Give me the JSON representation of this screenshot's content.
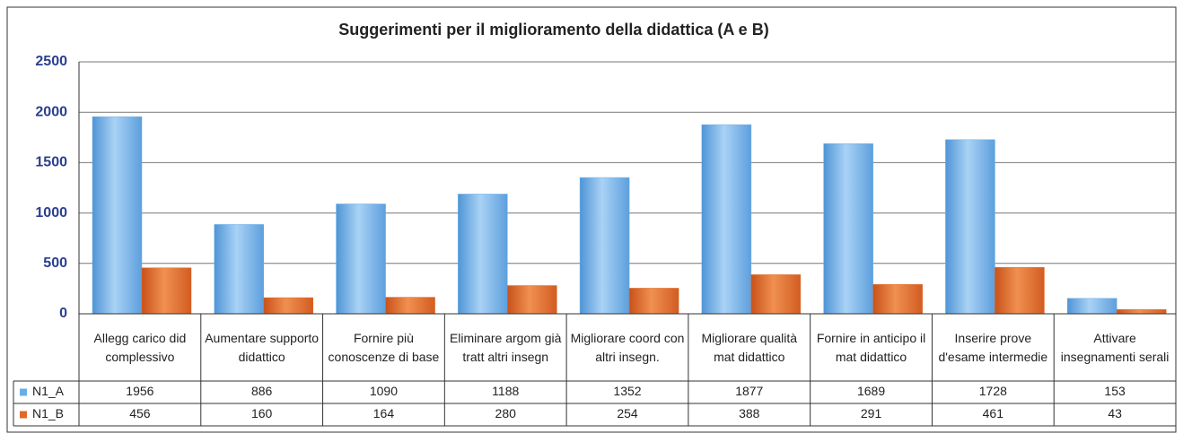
{
  "chart_data": {
    "type": "bar",
    "title": "Suggerimenti per il miglioramento della didattica (A e B)",
    "categories": [
      "Allegg carico did complessivo",
      "Aumentare supporto didattico",
      "Fornire più conoscenze di base",
      "Eliminare argom già tratt altri insegn",
      "Migliorare coord con altri insegn.",
      "Migliorare qualità mat didattico",
      "Fornire in anticipo il mat didattico",
      "Inserire prove d'esame intermedie",
      "Attivare insegnamenti serali"
    ],
    "series": [
      {
        "name": "N1_A",
        "color": "#6aaee6",
        "values": [
          1956,
          886,
          1090,
          1188,
          1352,
          1877,
          1689,
          1728,
          153
        ]
      },
      {
        "name": "N1_B",
        "color": "#e0692a",
        "values": [
          456,
          160,
          164,
          280,
          254,
          388,
          291,
          461,
          43
        ]
      }
    ],
    "ylim": [
      0,
      2500
    ],
    "yticks": [
      0,
      500,
      1000,
      1500,
      2000,
      2500
    ],
    "grid": true
  }
}
